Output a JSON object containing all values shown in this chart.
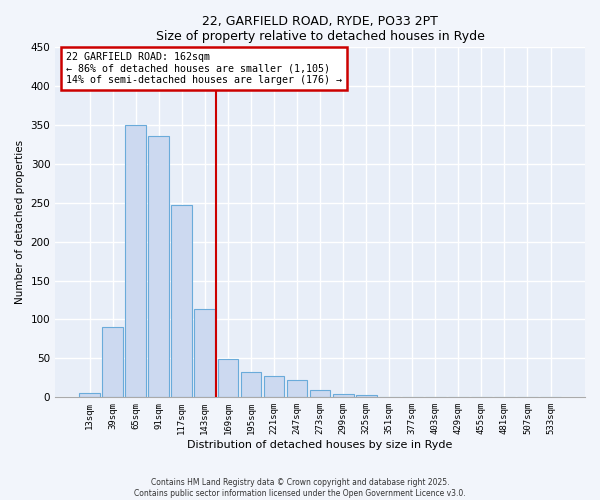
{
  "title": "22, GARFIELD ROAD, RYDE, PO33 2PT",
  "subtitle": "Size of property relative to detached houses in Ryde",
  "xlabel": "Distribution of detached houses by size in Ryde",
  "ylabel": "Number of detached properties",
  "bar_labels": [
    "13sqm",
    "39sqm",
    "65sqm",
    "91sqm",
    "117sqm",
    "143sqm",
    "169sqm",
    "195sqm",
    "221sqm",
    "247sqm",
    "273sqm",
    "299sqm",
    "325sqm",
    "351sqm",
    "377sqm",
    "403sqm",
    "429sqm",
    "455sqm",
    "481sqm",
    "507sqm",
    "533sqm"
  ],
  "bar_values": [
    6,
    90,
    350,
    335,
    247,
    113,
    49,
    32,
    27,
    22,
    10,
    4,
    3,
    1,
    0,
    0,
    0,
    0,
    0,
    0,
    0
  ],
  "bar_color": "#ccd9f0",
  "bar_edge_color": "#6aabda",
  "vline_x": 6,
  "vline_color": "#cc0000",
  "annotation_title": "22 GARFIELD ROAD: 162sqm",
  "annotation_line1": "← 86% of detached houses are smaller (1,105)",
  "annotation_line2": "14% of semi-detached houses are larger (176) →",
  "annotation_box_edge": "#cc0000",
  "ylim": [
    0,
    450
  ],
  "yticks": [
    0,
    50,
    100,
    150,
    200,
    250,
    300,
    350,
    400,
    450
  ],
  "footer_line1": "Contains HM Land Registry data © Crown copyright and database right 2025.",
  "footer_line2": "Contains public sector information licensed under the Open Government Licence v3.0.",
  "bg_color": "#f2f5fb",
  "plot_bg_color": "#e8eef8"
}
